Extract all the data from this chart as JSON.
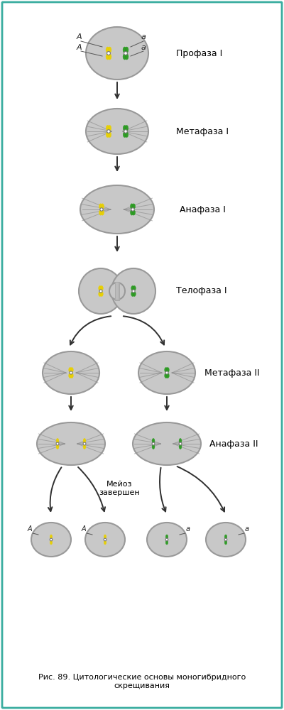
{
  "bg_color": "#ffffff",
  "border_color": "#3aada0",
  "cell_color": "#c8c8c8",
  "cell_edge_color": "#999999",
  "yellow_color": "#e8d000",
  "green_color": "#2a9a20",
  "spindle_color": "#888888",
  "arrow_color": "#303030",
  "caption": "Рис. 89. Цитологические основы моногибридного\nскрещивания",
  "label_profaza": "Профаза I",
  "label_metafaza1": "Метафаза I",
  "label_anafaza1": "Анафаза I",
  "label_telofaza1": "Телофаза I",
  "label_metafaza2": "Метафаза II",
  "label_anafaza2": "Анафаза II",
  "label_meioz": "Мейоз\nзавершен",
  "label_fontsize": 9,
  "caption_fontsize": 8
}
